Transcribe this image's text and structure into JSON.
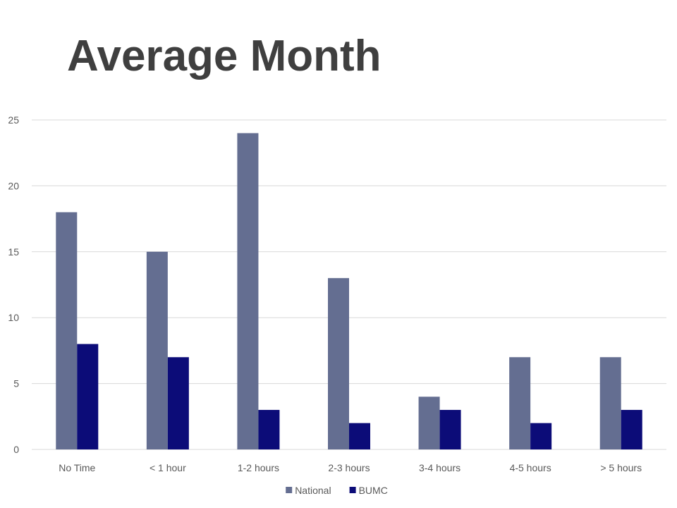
{
  "slide": {
    "title": "Average Month"
  },
  "chart_data": {
    "type": "bar",
    "categories": [
      "No Time",
      "< 1 hour",
      "1-2 hours",
      "2-3 hours",
      "3-4 hours",
      "4-5 hours",
      "> 5 hours"
    ],
    "series": [
      {
        "name": "National",
        "values": [
          18,
          15,
          24,
          13,
          4,
          7,
          7
        ],
        "color": "#646e91"
      },
      {
        "name": "BUMC",
        "values": [
          8,
          7,
          3,
          2,
          3,
          2,
          3
        ],
        "color": "#0c0c78"
      }
    ],
    "title": "",
    "xlabel": "",
    "ylabel": "",
    "ylim": [
      0,
      25
    ],
    "yticks": [
      0,
      5,
      10,
      15,
      20,
      25
    ],
    "grid": true,
    "legend_position": "bottom"
  }
}
